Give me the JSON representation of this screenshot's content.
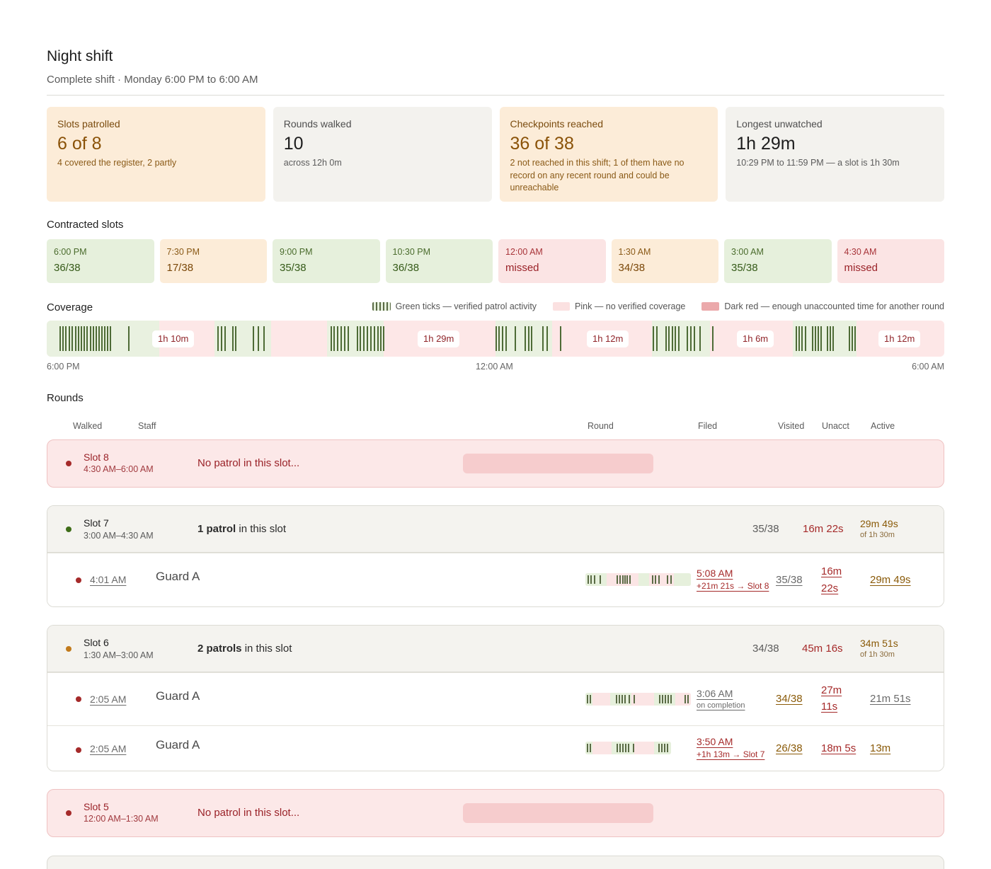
{
  "page": {
    "title": "Night shift",
    "subtitle": "Complete shift · Monday 6:00 PM to 6:00 AM"
  },
  "stats": [
    {
      "label": "Slots patrolled",
      "value": "6 of 8",
      "note": "4 covered the register, 2 partly",
      "tone": "amber"
    },
    {
      "label": "Rounds walked",
      "value": "10",
      "note": "across 12h 0m",
      "tone": "grey"
    },
    {
      "label": "Checkpoints reached",
      "value": "36 of 38",
      "note": "2 not reached in this shift; 1 of them have no record on any recent round and could be unreachable",
      "tone": "amber"
    },
    {
      "label": "Longest unwatched",
      "value": "1h 29m",
      "note": "10:29 PM to 11:59 PM — a slot is 1h 30m",
      "tone": "grey"
    }
  ],
  "contracted": {
    "heading": "Contracted slots",
    "slots": [
      {
        "time": "6:00 PM",
        "value": "36/38",
        "status": "green"
      },
      {
        "time": "7:30 PM",
        "value": "17/38",
        "status": "amber"
      },
      {
        "time": "9:00 PM",
        "value": "35/38",
        "status": "green"
      },
      {
        "time": "10:30 PM",
        "value": "36/38",
        "status": "green"
      },
      {
        "time": "12:00 AM",
        "value": "missed",
        "status": "red"
      },
      {
        "time": "1:30 AM",
        "value": "34/38",
        "status": "amber"
      },
      {
        "time": "3:00 AM",
        "value": "35/38",
        "status": "green"
      },
      {
        "time": "4:30 AM",
        "value": "missed",
        "status": "red"
      }
    ]
  },
  "coverage": {
    "heading": "Coverage",
    "legend": {
      "green": "Green ticks — verified patrol activity",
      "pink": "Pink — no verified coverage",
      "darkred": "Dark red — enough unaccounted time for another round"
    },
    "gap_labels": [
      "1h 10m",
      "1h 29m",
      "1h 12m",
      "1h 6m",
      "1h 12m"
    ],
    "axis": {
      "start": "6:00 PM",
      "mid": "12:00 AM",
      "end": "6:00 AM"
    }
  },
  "rounds": {
    "heading": "Rounds",
    "columns": {
      "walked": "Walked",
      "staff": "Staff",
      "round": "Round",
      "filed": "Filed",
      "visited": "Visited",
      "unacct": "Unacct",
      "active": "Active"
    },
    "slot8": {
      "name": "Slot 8",
      "time": "4:30 AM–6:00 AM",
      "message": "No patrol in this slot..."
    },
    "slot7": {
      "name": "Slot 7",
      "time": "3:00 AM–4:30 AM",
      "count": "1 patrol",
      "count_suffix": "in this slot",
      "visited": "35/38",
      "unacct": "16m 22s",
      "active": "29m 49s",
      "active_of": "of 1h 30m",
      "patrols": [
        {
          "walked": "4:01 AM",
          "staff": "Guard A",
          "filed": "5:08 AM",
          "filed_note": "+21m 21s → Slot 8",
          "visited": "35/38",
          "unacct_line1": "16m",
          "unacct_line2": "22s",
          "active": "29m 49s"
        }
      ]
    },
    "slot6": {
      "name": "Slot 6",
      "time": "1:30 AM–3:00 AM",
      "count": "2 patrols",
      "count_suffix": "in this slot",
      "visited": "34/38",
      "unacct": "45m 16s",
      "active": "34m 51s",
      "active_of": "of 1h 30m",
      "patrols": [
        {
          "walked": "2:05 AM",
          "staff": "Guard A",
          "filed": "3:06 AM",
          "filed_note": "on completion",
          "visited": "34/38",
          "unacct_line1": "27m",
          "unacct_line2": "11s",
          "active": "21m 51s"
        },
        {
          "walked": "2:05 AM",
          "staff": "Guard A",
          "filed": "3:50 AM",
          "filed_note": "+1h 13m → Slot 7",
          "visited": "26/38",
          "unacct": "18m 5s",
          "active": "13m"
        }
      ]
    },
    "slot5": {
      "name": "Slot 5",
      "time": "12:00 AM–1:30 AM",
      "message": "No patrol in this slot..."
    }
  }
}
